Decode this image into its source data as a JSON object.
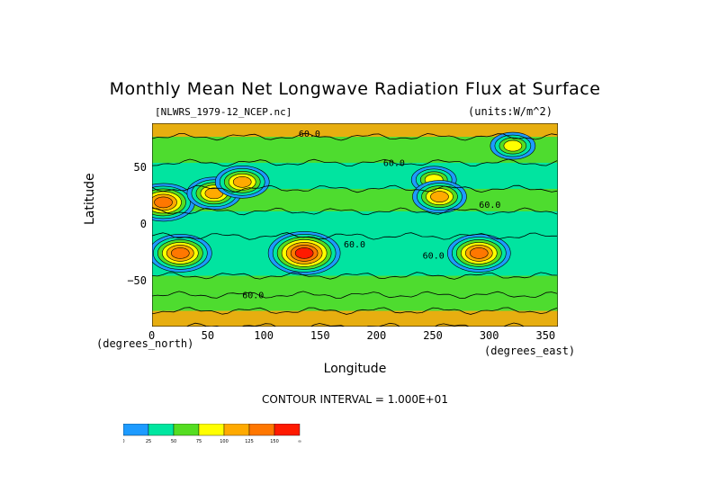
{
  "chart_data": {
    "type": "heatmap",
    "title": "Monthly Mean Net Longwave Radiation Flux at Surface",
    "subtitle": "[NLWRS_1979-12_NCEP.nc]",
    "units": "(units:W/m^2)",
    "xlabel": "Longitude",
    "ylabel": "Latitude",
    "x_unit_label": "(degrees_east)",
    "y_unit_label": "(degrees_north)",
    "xlim": [
      0,
      360
    ],
    "ylim": [
      -90,
      90
    ],
    "xticks": [
      0,
      50,
      100,
      150,
      200,
      250,
      300,
      350
    ],
    "yticks": [
      50,
      0,
      -50
    ],
    "contour_interval_text": "CONTOUR INTERVAL = 1.000E+01",
    "contour_labels": [
      {
        "lon": 130,
        "lat": 78,
        "text": "60.0"
      },
      {
        "lon": 205,
        "lat": 52,
        "text": "60.0"
      },
      {
        "lon": 290,
        "lat": 15,
        "text": "60.0"
      },
      {
        "lon": 170,
        "lat": -20,
        "text": "60.0"
      },
      {
        "lon": 240,
        "lat": -30,
        "text": "60.0"
      },
      {
        "lon": 80,
        "lat": -65,
        "text": "60.0"
      }
    ],
    "colorbar": {
      "levels": [
        "0",
        "25",
        "50",
        "75",
        "100",
        "125",
        "150",
        "∞"
      ],
      "colors": [
        "#1e9bff",
        "#00e6a0",
        "#55dd22",
        "#ffff00",
        "#ffaa00",
        "#ff7700",
        "#ff1a00"
      ]
    },
    "fields": {
      "background": "#10d2a0",
      "bands": [
        {
          "lat_range": [
            -90,
            -76
          ],
          "value": 110
        },
        {
          "lat_range": [
            -76,
            -62
          ],
          "value": 70
        },
        {
          "lat_range": [
            -62,
            -45
          ],
          "value": 55
        },
        {
          "lat_range": [
            -45,
            -10
          ],
          "value": 35
        },
        {
          "lat_range": [
            -10,
            12
          ],
          "value": 45
        },
        {
          "lat_range": [
            12,
            32
          ],
          "value": 58
        },
        {
          "lat_range": [
            32,
            55
          ],
          "value": 45
        },
        {
          "lat_range": [
            55,
            78
          ],
          "value": 70
        },
        {
          "lat_range": [
            78,
            90
          ],
          "value": 100
        }
      ],
      "hotspots": [
        {
          "name": "sahara",
          "lon": 10,
          "lat": 20,
          "value": 130
        },
        {
          "name": "arabia-india",
          "lon": 55,
          "lat": 28,
          "value": 110
        },
        {
          "name": "tibet",
          "lon": 80,
          "lat": 38,
          "value": 120
        },
        {
          "name": "southern-africa",
          "lon": 25,
          "lat": -25,
          "value": 140
        },
        {
          "name": "australia",
          "lon": 135,
          "lat": -25,
          "value": 150
        },
        {
          "name": "andes",
          "lon": 290,
          "lat": -25,
          "value": 130
        },
        {
          "name": "north-america",
          "lon": 250,
          "lat": 40,
          "value": 90
        },
        {
          "name": "mexico",
          "lon": 255,
          "lat": 25,
          "value": 100
        },
        {
          "name": "greenland-arctic",
          "lon": 320,
          "lat": 70,
          "value": 85
        }
      ]
    }
  }
}
